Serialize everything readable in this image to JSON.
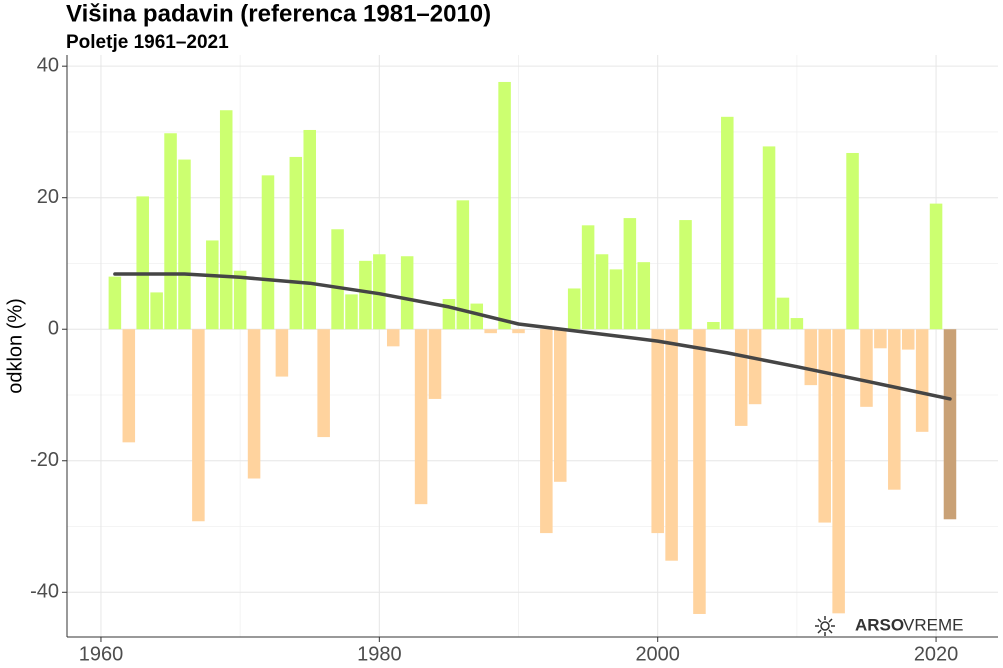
{
  "chart_data": {
    "type": "bar",
    "title": "Višina padavin (referenca 1981–2010)",
    "subtitle": "Poletje 1961–2021",
    "y_label": "odklon (%)",
    "x": [
      1961,
      1962,
      1963,
      1964,
      1965,
      1966,
      1967,
      1968,
      1969,
      1970,
      1971,
      1972,
      1973,
      1974,
      1975,
      1976,
      1977,
      1978,
      1979,
      1980,
      1981,
      1982,
      1983,
      1984,
      1985,
      1986,
      1987,
      1988,
      1989,
      1990,
      1991,
      1992,
      1993,
      1994,
      1995,
      1996,
      1997,
      1998,
      1999,
      2000,
      2001,
      2002,
      2003,
      2004,
      2005,
      2006,
      2007,
      2008,
      2009,
      2010,
      2011,
      2012,
      2013,
      2014,
      2015,
      2016,
      2017,
      2018,
      2019,
      2020,
      2021
    ],
    "values": [
      8,
      -17.2,
      20.2,
      5.6,
      29.8,
      25.8,
      -29.2,
      13.5,
      33.3,
      8.9,
      -22.7,
      23.4,
      -7.2,
      26.2,
      30.3,
      -16.4,
      15.2,
      5.3,
      10.4,
      11.4,
      -2.6,
      11.1,
      -26.6,
      -10.6,
      4.6,
      19.6,
      3.9,
      -0.6,
      37.6,
      -0.6,
      0,
      -31,
      -23.2,
      6.2,
      15.8,
      11.4,
      9.1,
      16.9,
      10.2,
      -31,
      -35.2,
      16.6,
      -43.3,
      1.1,
      32.3,
      -14.7,
      -11.4,
      27.8,
      4.8,
      1.7,
      -8.5,
      -29.4,
      -43.2,
      26.8,
      -11.8,
      -2.9,
      -24.4,
      -3.1,
      -15.6,
      19.1,
      -28.9
    ],
    "color_positive": "#ccff70",
    "color_negative": "#ffd39e",
    "color_last": "#c9a176",
    "trend": {
      "x": [
        1961,
        1966,
        1970,
        1975,
        1980,
        1985,
        1990,
        1995,
        2000,
        2005,
        2010,
        2015,
        2021
      ],
      "values": [
        8.4,
        8.4,
        7.9,
        7.0,
        5.4,
        3.4,
        0.8,
        -0.5,
        -1.8,
        -3.6,
        -5.7,
        -7.9,
        -10.6
      ],
      "color": "#454545"
    },
    "xlim": [
      1957.56,
      2024.45
    ],
    "ylim": [
      -46.8,
      41.7
    ],
    "xticks": [
      1960,
      1980,
      2000,
      2020
    ],
    "yticks": [
      -40,
      -20,
      0,
      20,
      40
    ],
    "grid": true,
    "watermark_bold": "ARSO",
    "watermark": "VREME"
  }
}
